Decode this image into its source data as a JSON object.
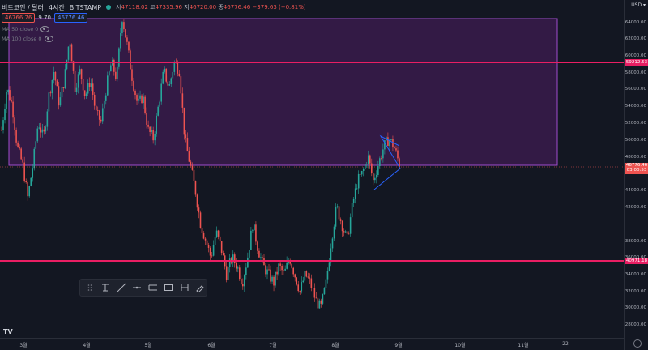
{
  "header": {
    "symbol": "비트코인 / 달러",
    "interval": "4시간",
    "exchange": "BITSTAMP",
    "ohlc": {
      "open_label": "시",
      "open": "47118.02",
      "high_label": "고",
      "high": "47335.96",
      "low_label": "저",
      "low": "46720.00",
      "close_label": "종",
      "close": "46776.46",
      "change": "−379.63 (−0.81%)"
    }
  },
  "badges": {
    "bid": "46766.76",
    "spread": "9.70",
    "ask": "46776.46"
  },
  "indicators": [
    {
      "label": "MA 50 close 0"
    },
    {
      "label": "MA 100 close 0"
    }
  ],
  "currency": "USD",
  "y_ticks": [
    "64000.00",
    "62000.00",
    "60000.00",
    "58000.00",
    "56000.00",
    "54000.00",
    "52000.00",
    "50000.00",
    "48000.00",
    "44000.00",
    "42000.00",
    "38000.00",
    "36000.00",
    "34000.00",
    "32000.00",
    "30000.00",
    "28000.00"
  ],
  "price_labels": {
    "resistance": "59212.53",
    "current": "46776.46",
    "countdown": "03:00:53",
    "support": "40971.18"
  },
  "x_ticks": [
    "3월",
    "4월",
    "5월",
    "6월",
    "7월",
    "8월",
    "9월",
    "10월",
    "11월",
    "22"
  ],
  "logo": "TV",
  "colors": {
    "bg": "#131722",
    "up": "#26a69a",
    "down": "#ef5350",
    "hline": "#e91e63",
    "zone": "#7b1fa2"
  },
  "chart_data": {
    "type": "candlestick",
    "ylim": [
      27000,
      65000
    ],
    "x": [
      "3월",
      "4월",
      "5월",
      "6월",
      "7월",
      "8월",
      "9월",
      "10월",
      "11월",
      "22"
    ],
    "path": [
      [
        0,
        51000
      ],
      [
        1,
        56000
      ],
      [
        2,
        54000
      ],
      [
        3,
        49000
      ],
      [
        4,
        47000
      ],
      [
        5,
        43000
      ],
      [
        6,
        47000
      ],
      [
        7,
        52000
      ],
      [
        8,
        50000
      ],
      [
        9,
        55000
      ],
      [
        10,
        58000
      ],
      [
        11,
        54000
      ],
      [
        12,
        57000
      ],
      [
        13,
        62000
      ],
      [
        14,
        56000
      ],
      [
        15,
        58000
      ],
      [
        16,
        55000
      ],
      [
        17,
        57000
      ],
      [
        18,
        53000
      ],
      [
        19,
        52000
      ],
      [
        20,
        56000
      ],
      [
        21,
        59000
      ],
      [
        22,
        57000
      ],
      [
        23,
        64500
      ],
      [
        24,
        61000
      ],
      [
        25,
        57000
      ],
      [
        26,
        54000
      ],
      [
        27,
        55000
      ],
      [
        28,
        51000
      ],
      [
        29,
        50000
      ],
      [
        30,
        54000
      ],
      [
        31,
        58000
      ],
      [
        32,
        56000
      ],
      [
        33,
        59000
      ],
      [
        34,
        58000
      ],
      [
        35,
        50000
      ],
      [
        36,
        47000
      ],
      [
        37,
        44000
      ],
      [
        38,
        40000
      ],
      [
        39,
        38000
      ],
      [
        40,
        36000
      ],
      [
        41,
        39000
      ],
      [
        42,
        37000
      ],
      [
        43,
        34000
      ],
      [
        44,
        36000
      ],
      [
        45,
        35000
      ],
      [
        46,
        33000
      ],
      [
        47,
        36000
      ],
      [
        48,
        40000
      ],
      [
        49,
        37000
      ],
      [
        50,
        35000
      ],
      [
        51,
        34000
      ],
      [
        52,
        33000
      ],
      [
        53,
        35000
      ],
      [
        54,
        34000
      ],
      [
        55,
        36000
      ],
      [
        56,
        34000
      ],
      [
        57,
        32000
      ],
      [
        58,
        34000
      ],
      [
        59,
        33000
      ],
      [
        60,
        31000
      ],
      [
        61,
        30000
      ],
      [
        62,
        33000
      ],
      [
        63,
        38000
      ],
      [
        64,
        42000
      ],
      [
        65,
        40000
      ],
      [
        66,
        38000
      ],
      [
        67,
        42000
      ],
      [
        68,
        45000
      ],
      [
        69,
        46000
      ],
      [
        70,
        48000
      ],
      [
        71,
        45000
      ],
      [
        72,
        47000
      ],
      [
        73,
        49000
      ],
      [
        74,
        50000
      ],
      [
        75,
        49000
      ],
      [
        76,
        47000
      ]
    ]
  }
}
